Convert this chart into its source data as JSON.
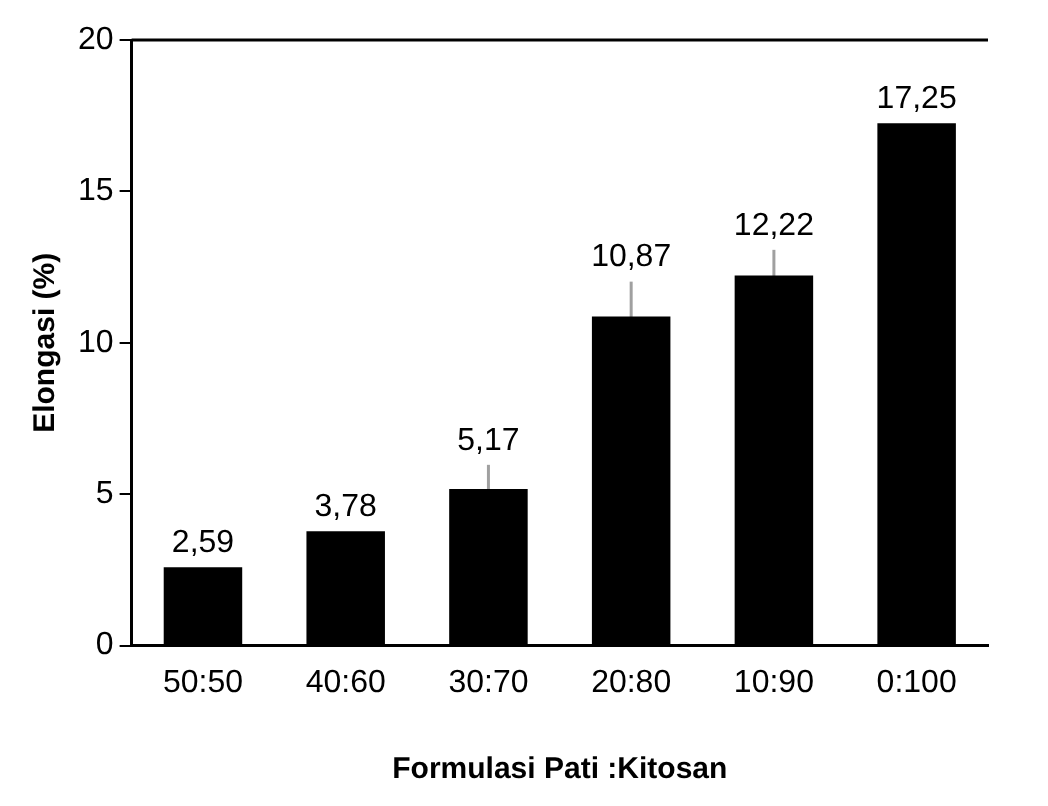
{
  "chart_data": {
    "type": "bar",
    "xlabel": "Formulasi Pati :Kitosan",
    "ylabel": "Elongasi (%)",
    "categories": [
      "50:50",
      "40:60",
      "30:70",
      "20:80",
      "10:90",
      "0:100"
    ],
    "values": [
      2.59,
      3.78,
      5.17,
      10.87,
      12.22,
      17.25
    ],
    "value_labels": [
      "2,59",
      "3,78",
      "5,17",
      "10,87",
      "12,22",
      "17,25"
    ],
    "errors": [
      null,
      null,
      0.8,
      1.15,
      0.85,
      null
    ],
    "color": "#000000",
    "ylim": [
      0,
      20
    ],
    "yticks": [
      0,
      5,
      10,
      15,
      20
    ],
    "grid": false,
    "legend": false
  }
}
